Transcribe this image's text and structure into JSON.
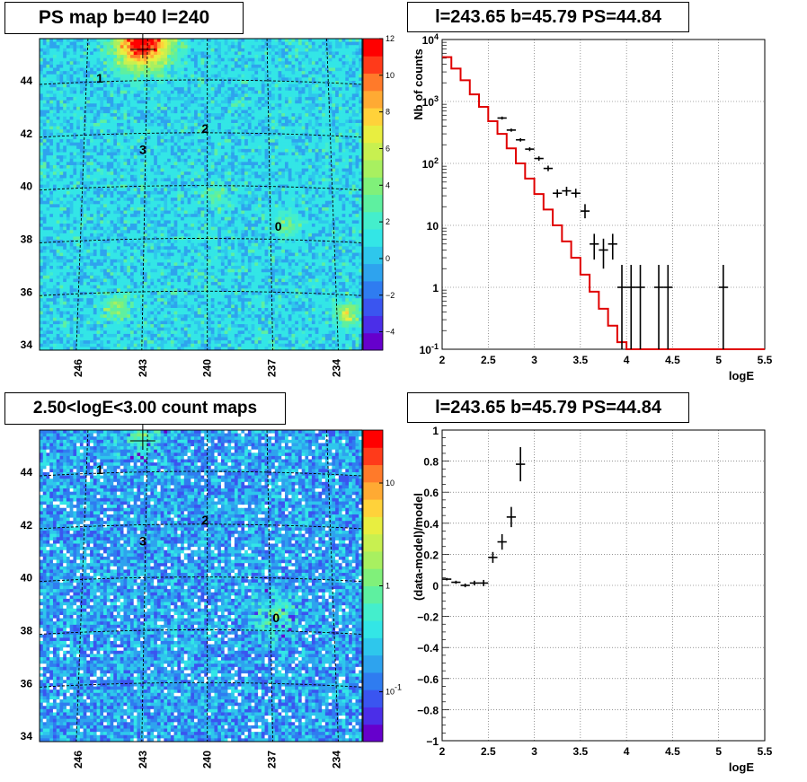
{
  "chart_data": [
    {
      "id": "ps_map",
      "type": "heatmap",
      "title": "PS map b=40 l=240",
      "x_ticks": [
        "246",
        "243",
        "240",
        "237",
        "234"
      ],
      "y_ticks": [
        "44",
        "42",
        "40",
        "38",
        "36",
        "34"
      ],
      "colorbar_ticks": [
        "12",
        "10",
        "8",
        "6",
        "4",
        "2",
        "0",
        "−2",
        "−4"
      ],
      "colorbar_range": [
        -5,
        12
      ],
      "colormap": [
        "#6600cc",
        "#4b2ee8",
        "#3a55f0",
        "#2f7cf0",
        "#2ea3ee",
        "#2ec7ec",
        "#33e6e6",
        "#44eecc",
        "#5ef0a0",
        "#80f07a",
        "#a8f060",
        "#c8f050",
        "#e8ee40",
        "#ffd23a",
        "#ffaa33",
        "#ff7a2a",
        "#ff3a1a",
        "#ff0000"
      ],
      "sources": [
        {
          "label": "0",
          "lon": 236.7,
          "lat": 38.5
        },
        {
          "label": "1",
          "lon": 245.0,
          "lat": 44.1
        },
        {
          "label": "2",
          "lon": 240.1,
          "lat": 42.2
        },
        {
          "label": "3",
          "lon": 243.0,
          "lat": 41.4
        }
      ],
      "bright_spots": [
        {
          "lon": 243.0,
          "lat": 45.5,
          "value": 12
        },
        {
          "lon": 233.5,
          "lat": 35.2,
          "value": 5
        },
        {
          "lon": 244.2,
          "lat": 35.4,
          "value": 4
        },
        {
          "lon": 236.3,
          "lat": 38.5,
          "value": 3
        },
        {
          "lon": 239.6,
          "lat": 39.7,
          "value": 2.5
        }
      ]
    },
    {
      "id": "spectrum",
      "type": "line",
      "title": "l=243.65 b=45.79 PS=44.84",
      "xlabel": "logE",
      "ylabel": "Nb of counts",
      "xlim": [
        2,
        5.5
      ],
      "ylim": [
        0.1,
        10000
      ],
      "yscale": "log",
      "x_ticks": [
        "2",
        "2.5",
        "3",
        "3.5",
        "4",
        "4.5",
        "5",
        "5.5"
      ],
      "y_ticks": [
        "10^4",
        "10^3",
        "10^2",
        "10",
        "1",
        "10^-1"
      ],
      "grid": true,
      "model_color": "#e00000",
      "model_bin_edges": [
        2.0,
        2.1,
        2.2,
        2.3,
        2.4,
        2.5,
        2.6,
        2.7,
        2.8,
        2.9,
        3.0,
        3.1,
        3.2,
        3.3,
        3.4,
        3.5,
        3.6,
        3.7,
        3.8,
        3.9,
        4.0,
        5.5
      ],
      "model_values": [
        5200,
        3400,
        2200,
        1300,
        820,
        480,
        300,
        175,
        100,
        57,
        32,
        18,
        10,
        5.5,
        3.0,
        1.6,
        0.85,
        0.45,
        0.24,
        0.13,
        0.1
      ],
      "data_points": [
        {
          "x": 2.65,
          "y": 540,
          "xerr": 0.05,
          "ylo": 510,
          "yhi": 570
        },
        {
          "x": 2.75,
          "y": 345,
          "xerr": 0.05,
          "ylo": 325,
          "yhi": 365
        },
        {
          "x": 2.85,
          "y": 240,
          "xerr": 0.05,
          "ylo": 225,
          "yhi": 255
        },
        {
          "x": 2.95,
          "y": 170,
          "xerr": 0.05,
          "ylo": 158,
          "yhi": 182
        },
        {
          "x": 3.05,
          "y": 120,
          "xerr": 0.05,
          "ylo": 110,
          "yhi": 130
        },
        {
          "x": 3.15,
          "y": 83,
          "xerr": 0.05,
          "ylo": 75,
          "yhi": 92
        },
        {
          "x": 3.25,
          "y": 33,
          "xerr": 0.05,
          "ylo": 28,
          "yhi": 38
        },
        {
          "x": 3.35,
          "y": 36,
          "xerr": 0.05,
          "ylo": 30,
          "yhi": 42
        },
        {
          "x": 3.45,
          "y": 33,
          "xerr": 0.05,
          "ylo": 28,
          "yhi": 39
        },
        {
          "x": 3.55,
          "y": 17,
          "xerr": 0.05,
          "ylo": 13,
          "yhi": 22
        },
        {
          "x": 3.65,
          "y": 5,
          "xerr": 0.05,
          "ylo": 2.8,
          "yhi": 7.3
        },
        {
          "x": 3.75,
          "y": 4,
          "xerr": 0.05,
          "ylo": 2.0,
          "yhi": 6.1
        },
        {
          "x": 3.85,
          "y": 5,
          "xerr": 0.05,
          "ylo": 2.8,
          "yhi": 7.3
        },
        {
          "x": 3.95,
          "y": 1,
          "xerr": 0.05,
          "ylo": 0.1,
          "yhi": 2.3
        },
        {
          "x": 4.05,
          "y": 1,
          "xerr": 0.05,
          "ylo": 0.1,
          "yhi": 2.3
        },
        {
          "x": 4.15,
          "y": 1,
          "xerr": 0.05,
          "ylo": 0.1,
          "yhi": 2.3
        },
        {
          "x": 4.35,
          "y": 1,
          "xerr": 0.05,
          "ylo": 0.1,
          "yhi": 2.3
        },
        {
          "x": 4.45,
          "y": 1,
          "xerr": 0.05,
          "ylo": 0.1,
          "yhi": 2.3
        },
        {
          "x": 5.05,
          "y": 1,
          "xerr": 0.05,
          "ylo": 0.1,
          "yhi": 2.3
        }
      ]
    },
    {
      "id": "count_map",
      "type": "heatmap",
      "title": "2.50<logE<3.00 count maps",
      "x_ticks": [
        "246",
        "243",
        "240",
        "237",
        "234"
      ],
      "y_ticks": [
        "44",
        "42",
        "40",
        "38",
        "36",
        "34"
      ],
      "colorbar_ticks": [
        "10",
        "1",
        "10^-1"
      ],
      "colorbar_scale": "log",
      "colormap": [
        "#6600cc",
        "#4b2ee8",
        "#3a55f0",
        "#2f7cf0",
        "#2ea3ee",
        "#2ec7ec",
        "#33e6e6",
        "#44eecc",
        "#5ef0a0",
        "#80f07a",
        "#a8f060",
        "#c8f050",
        "#e8ee40",
        "#ffd23a",
        "#ffaa33",
        "#ff7a2a",
        "#ff3a1a",
        "#ff0000"
      ],
      "sources": [
        {
          "label": "0",
          "lon": 236.8,
          "lat": 38.5
        },
        {
          "label": "1",
          "lon": 245.0,
          "lat": 44.1
        },
        {
          "label": "2",
          "lon": 240.1,
          "lat": 42.2
        },
        {
          "label": "3",
          "lon": 243.0,
          "lat": 41.4
        }
      ],
      "bright_spots": [
        {
          "lon": 236.9,
          "lat": 38.6,
          "value": 4
        },
        {
          "lon": 243.0,
          "lat": 45.5,
          "value": 3
        }
      ]
    },
    {
      "id": "residuals",
      "type": "scatter",
      "title": "l=243.65 b=45.79 PS=44.84",
      "xlabel": "logE",
      "ylabel": "(data-model)/model",
      "xlim": [
        2,
        5.5
      ],
      "ylim": [
        -1,
        1
      ],
      "x_ticks": [
        "2",
        "2.5",
        "3",
        "3.5",
        "4",
        "4.5",
        "5",
        "5.5"
      ],
      "y_ticks": [
        "1",
        "0.8",
        "0.6",
        "0.4",
        "0.2",
        "0",
        "−0.2",
        "−0.4",
        "−0.6",
        "−0.8",
        "−1"
      ],
      "grid": true,
      "data_points": [
        {
          "x": 2.05,
          "y": 0.04,
          "xerr": 0.05,
          "yerr": 0.008
        },
        {
          "x": 2.15,
          "y": 0.02,
          "xerr": 0.05,
          "yerr": 0.01
        },
        {
          "x": 2.25,
          "y": 0.0,
          "xerr": 0.05,
          "yerr": 0.012
        },
        {
          "x": 2.35,
          "y": 0.015,
          "xerr": 0.05,
          "yerr": 0.015
        },
        {
          "x": 2.45,
          "y": 0.015,
          "xerr": 0.05,
          "yerr": 0.02
        },
        {
          "x": 2.55,
          "y": 0.18,
          "xerr": 0.05,
          "yerr": 0.035
        },
        {
          "x": 2.65,
          "y": 0.28,
          "xerr": 0.05,
          "yerr": 0.05
        },
        {
          "x": 2.75,
          "y": 0.44,
          "xerr": 0.05,
          "yerr": 0.065
        },
        {
          "x": 2.85,
          "y": 0.78,
          "xerr": 0.05,
          "yerr": 0.11
        }
      ]
    }
  ]
}
